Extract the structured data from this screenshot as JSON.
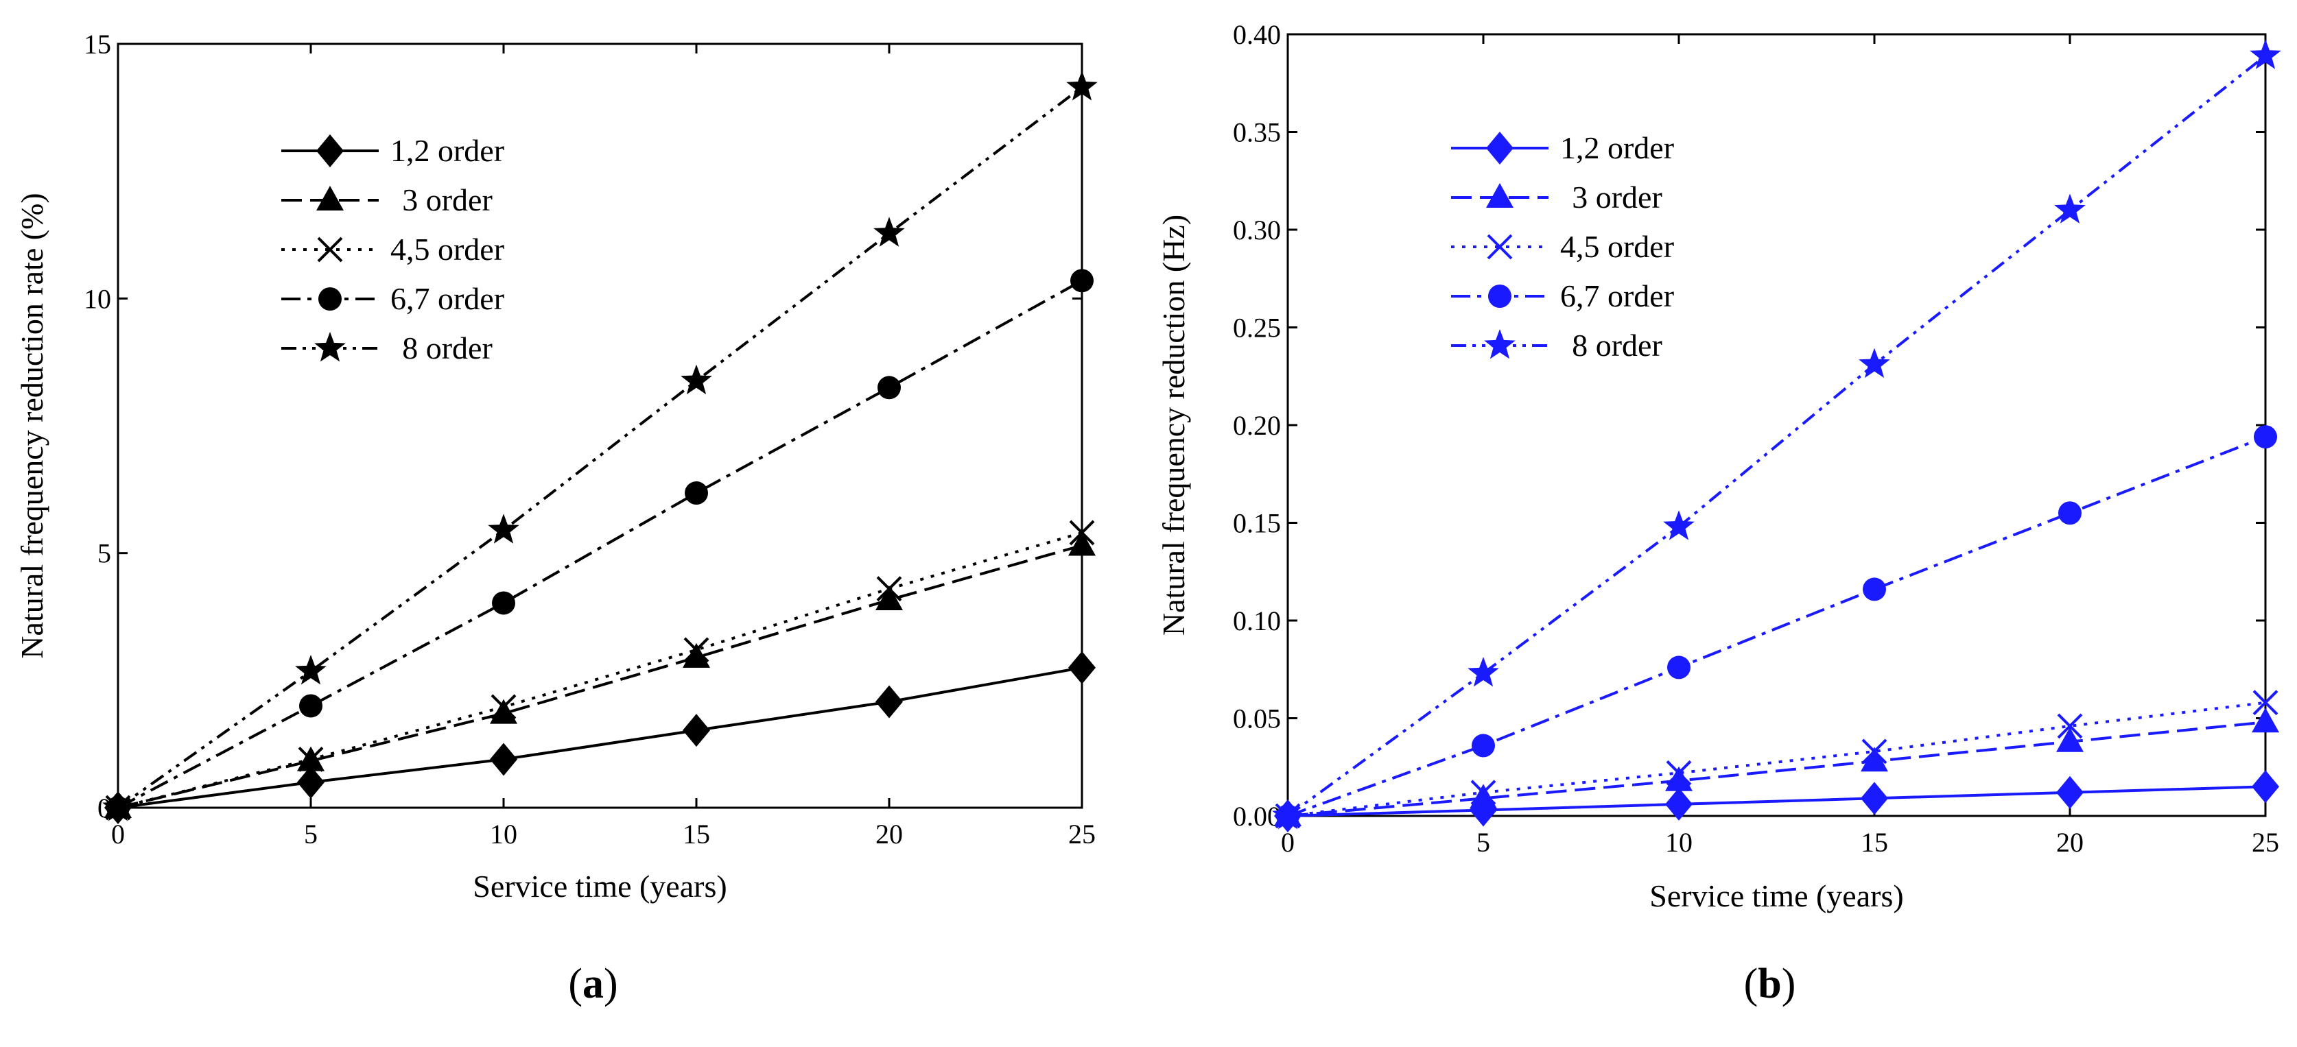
{
  "chart_data": [
    {
      "type": "line",
      "panel_label": "(a)",
      "panel_letter": "a",
      "xlabel": "Service time (years)",
      "ylabel": "Natural frequency reduction rate (%)",
      "x": [
        0,
        5,
        10,
        15,
        20,
        25
      ],
      "xlim": [
        0,
        25
      ],
      "ylim": [
        0,
        15
      ],
      "xticks": [
        0,
        5,
        10,
        15,
        20,
        25
      ],
      "yticks": [
        0,
        5,
        10,
        15
      ],
      "ytick_labels": [
        "0",
        "5",
        "10",
        "15"
      ],
      "color": "#000000",
      "grid": false,
      "legend_position": "upper-left",
      "series": [
        {
          "name": "1,2 order",
          "values": [
            0,
            0.5,
            0.95,
            1.52,
            2.08,
            2.75
          ],
          "marker": "diamond",
          "dash": "solid"
        },
        {
          "name": "3 order",
          "values": [
            0,
            0.92,
            1.85,
            2.95,
            4.08,
            5.15
          ],
          "marker": "triangle",
          "dash": "dashed"
        },
        {
          "name": "4,5 order",
          "values": [
            0,
            0.95,
            1.98,
            3.1,
            4.3,
            5.4
          ],
          "marker": "cross",
          "dash": "dotted"
        },
        {
          "name": "6,7 order",
          "values": [
            0,
            2.0,
            4.02,
            6.18,
            8.25,
            10.35
          ],
          "marker": "circle",
          "dash": "dash-dot"
        },
        {
          "name": "8 order",
          "values": [
            0,
            2.68,
            5.45,
            8.38,
            11.28,
            14.15
          ],
          "marker": "star",
          "dash": "dash-dot-dot"
        }
      ]
    },
    {
      "type": "line",
      "panel_label": "(b)",
      "panel_letter": "b",
      "xlabel": "Service time (years)",
      "ylabel": "Natural frequency reduction (Hz)",
      "x": [
        0,
        5,
        10,
        15,
        20,
        25
      ],
      "xlim": [
        0,
        25
      ],
      "ylim": [
        0,
        0.4
      ],
      "xticks": [
        0,
        5,
        10,
        15,
        20,
        25
      ],
      "yticks": [
        0,
        0.05,
        0.1,
        0.15,
        0.2,
        0.25,
        0.3,
        0.35,
        0.4
      ],
      "ytick_labels": [
        "0.00",
        "0.05",
        "0.10",
        "0.15",
        "0.20",
        "0.25",
        "0.30",
        "0.35",
        "0.40"
      ],
      "color": "#1a1aff",
      "grid": false,
      "legend_position": "upper-left",
      "series": [
        {
          "name": "1,2 order",
          "values": [
            0,
            0.003,
            0.006,
            0.009,
            0.012,
            0.015
          ],
          "marker": "diamond",
          "dash": "solid"
        },
        {
          "name": "3 order",
          "values": [
            0,
            0.009,
            0.018,
            0.028,
            0.038,
            0.048
          ],
          "marker": "triangle",
          "dash": "dashed"
        },
        {
          "name": "4,5 order",
          "values": [
            0,
            0.012,
            0.022,
            0.033,
            0.046,
            0.058
          ],
          "marker": "cross",
          "dash": "dotted"
        },
        {
          "name": "6,7 order",
          "values": [
            0,
            0.036,
            0.076,
            0.116,
            0.155,
            0.194
          ],
          "marker": "circle",
          "dash": "dash-dot"
        },
        {
          "name": "8 order",
          "values": [
            0,
            0.073,
            0.148,
            0.231,
            0.31,
            0.389
          ],
          "marker": "star",
          "dash": "dash-dot-dot"
        }
      ]
    }
  ]
}
